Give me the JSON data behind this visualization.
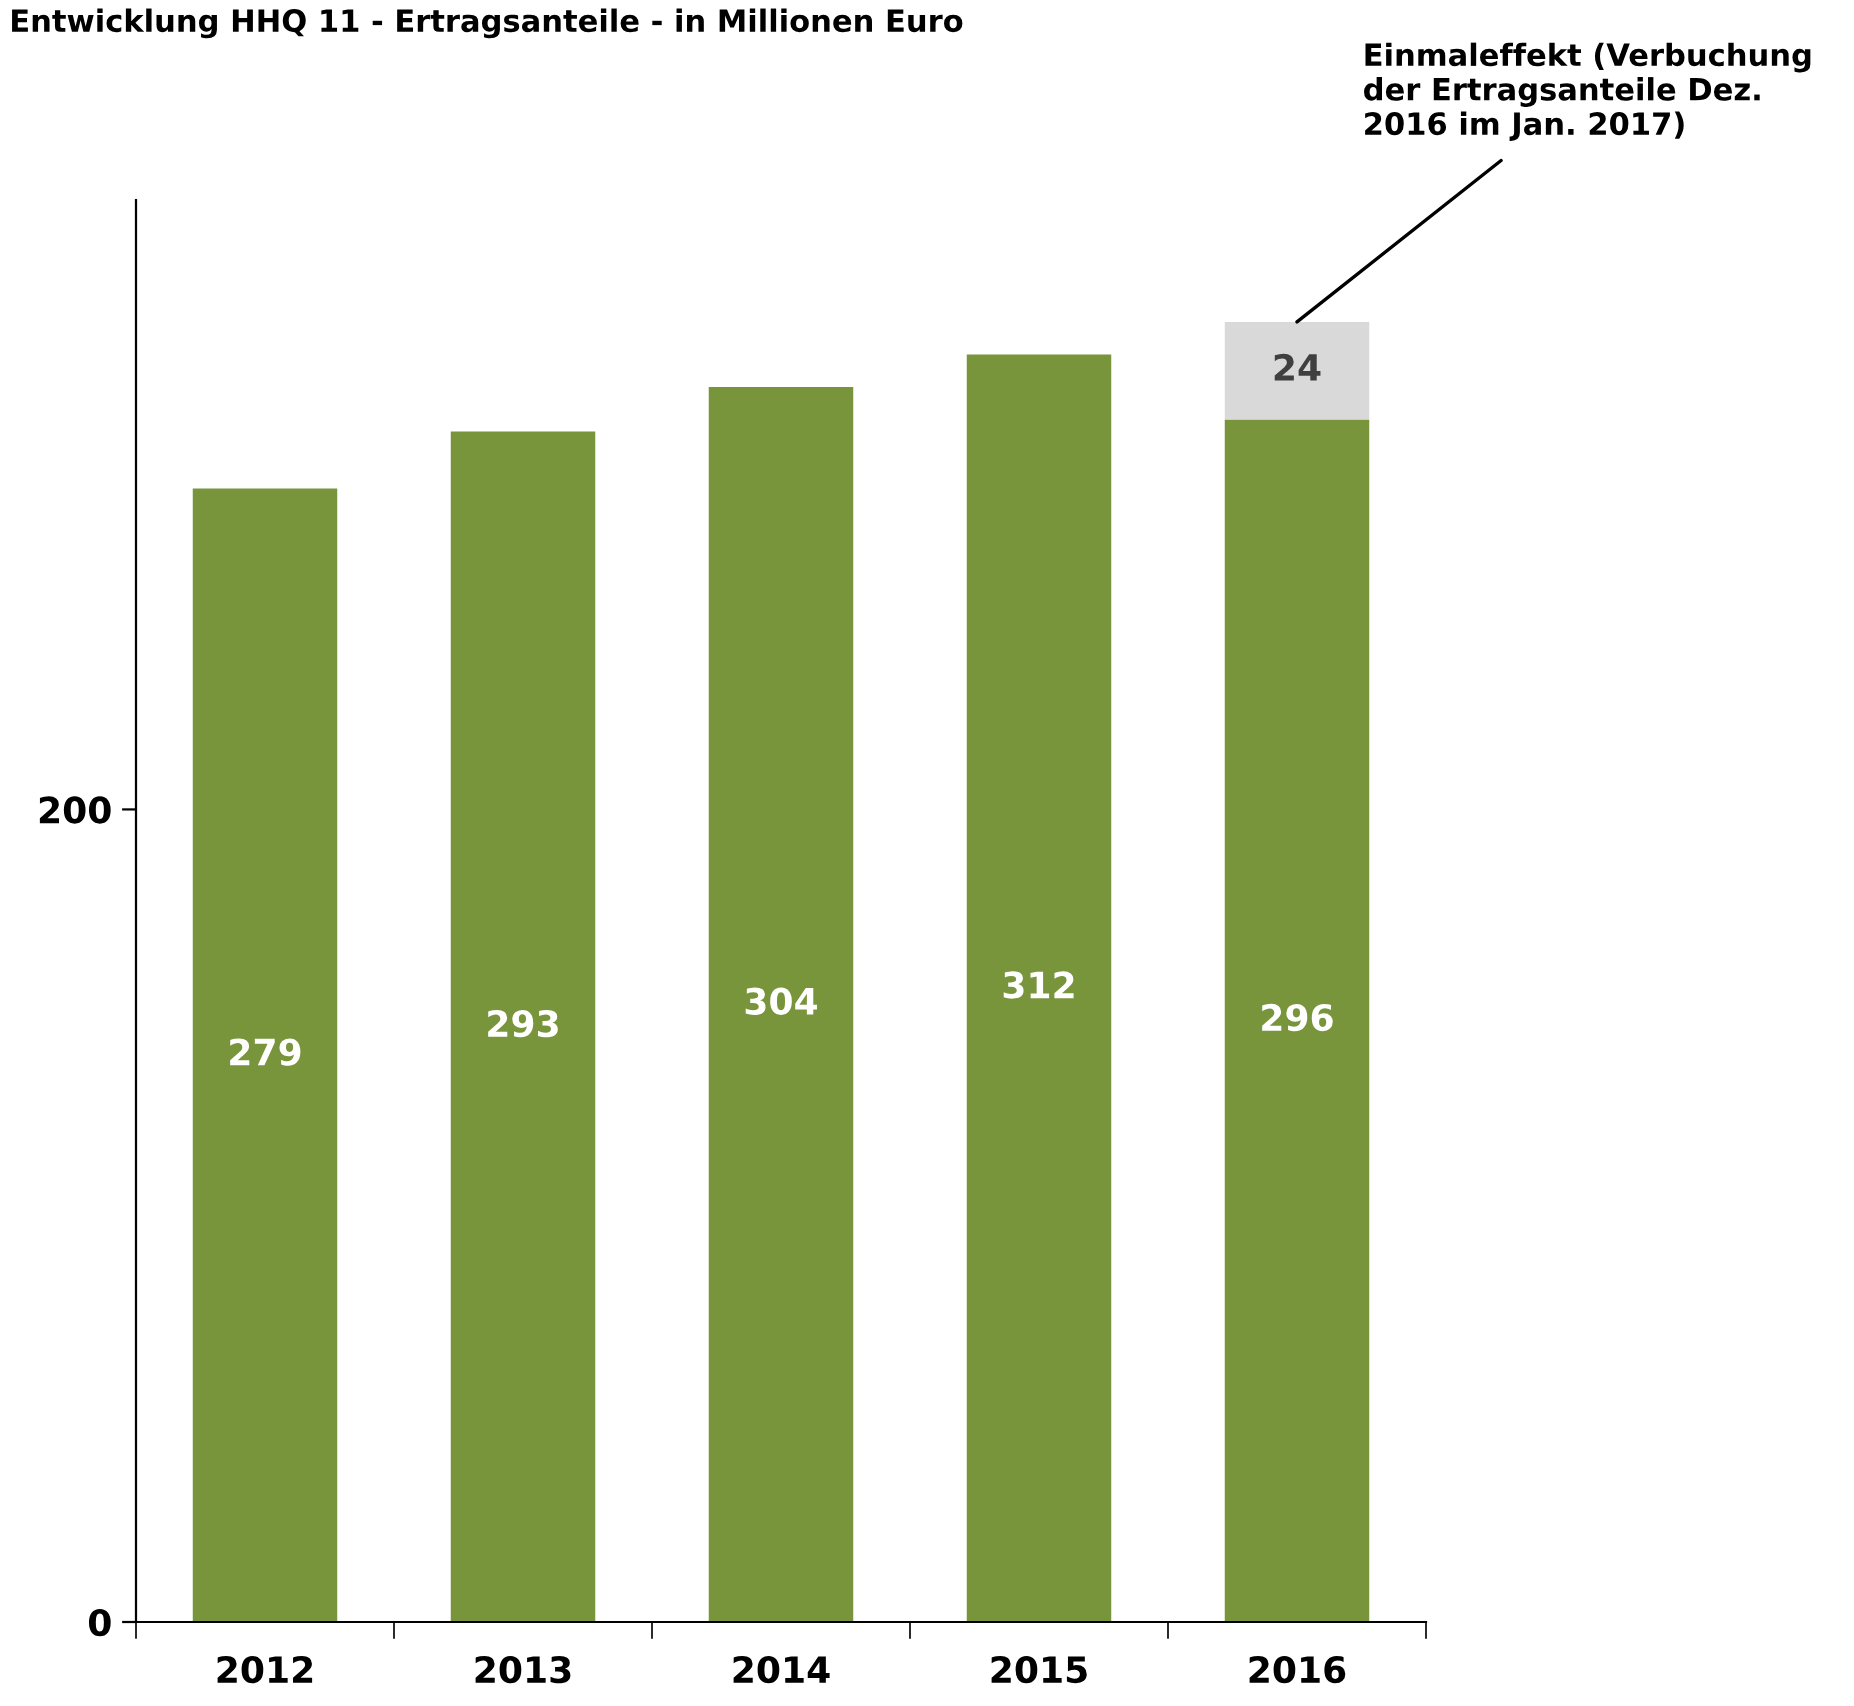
{
  "chart_data": {
    "type": "bar",
    "title": "Entwicklung HHQ 11 - Ertragsanteile - in Millionen Euro",
    "categories": [
      "2012",
      "2013",
      "2014",
      "2015",
      "2016"
    ],
    "stacked": true,
    "series": [
      {
        "color": "#79953c",
        "values": [
          279,
          293,
          304,
          312,
          296
        ]
      },
      {
        "color": "#d9d9d9",
        "values": [
          null,
          null,
          null,
          null,
          24
        ]
      }
    ],
    "data_labels": true,
    "ylim": [
      0,
      350
    ],
    "yticks": [
      0,
      200
    ],
    "annotations": [
      {
        "text": "Einmaleffekt (Verbuchung der Ertragsanteile Dez. 2016 im Jan. 2017)",
        "x": "2016",
        "y": 320
      }
    ],
    "grid": false,
    "legend": false
  }
}
